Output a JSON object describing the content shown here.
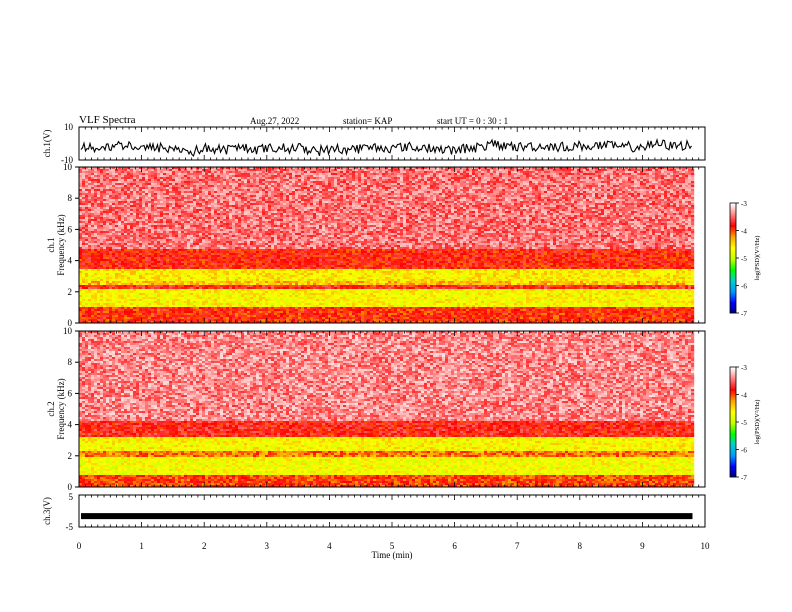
{
  "header": {
    "title": "VLF Spectra",
    "date": "Aug.27, 2022",
    "station": "station= KAP",
    "start": "start  UT =   0 : 30 : 1"
  },
  "chart_data": [
    {
      "type": "line",
      "name": "ch1-waveform",
      "ylabel": "ch.1(V)",
      "ylim": [
        -10,
        10
      ],
      "yticks": [
        "10",
        "-10"
      ],
      "xlim": [
        0,
        10
      ],
      "note_level_center": 0
    },
    {
      "type": "heatmap",
      "name": "ch1-spectrogram",
      "ylabel": "ch.1\nFrequency  (kHz)",
      "ylim": [
        0,
        10
      ],
      "yticks": [
        0,
        2,
        4,
        6,
        8,
        10
      ],
      "xlim": [
        0,
        10
      ],
      "data_end_x": 9.8,
      "colorbar": {
        "min": -7,
        "max": -3,
        "ticks": [
          "-3",
          "-4",
          "-5",
          "-6",
          "-7"
        ],
        "label": "log(PSD)(V²/Hz)"
      },
      "bands": [
        {
          "from_khz": 0.0,
          "to_khz": 1.0,
          "level": -4.2
        },
        {
          "from_khz": 1.0,
          "to_khz": 2.2,
          "level": -5.4
        },
        {
          "from_khz": 2.2,
          "to_khz": 2.4,
          "level": -4.0
        },
        {
          "from_khz": 2.4,
          "to_khz": 2.7,
          "level": -5.0
        },
        {
          "from_khz": 2.7,
          "to_khz": 3.5,
          "level": -5.3
        },
        {
          "from_khz": 3.5,
          "to_khz": 4.8,
          "level": -4.1
        },
        {
          "from_khz": 4.8,
          "to_khz": 10.0,
          "level": -3.5
        }
      ]
    },
    {
      "type": "heatmap",
      "name": "ch2-spectrogram",
      "ylabel": "ch.2\nFrequency  (kHz)",
      "ylim": [
        0,
        10
      ],
      "yticks": [
        0,
        2,
        4,
        6,
        8,
        10
      ],
      "xlim": [
        0,
        10
      ],
      "data_end_x": 9.8,
      "colorbar": {
        "min": -7,
        "max": -3,
        "ticks": [
          "-3",
          "-4",
          "-5",
          "-6",
          "-7"
        ],
        "label": "log(PSD)(V²/Hz)"
      },
      "bands": [
        {
          "from_khz": 0.0,
          "to_khz": 0.8,
          "level": -4.3
        },
        {
          "from_khz": 0.8,
          "to_khz": 1.9,
          "level": -5.5
        },
        {
          "from_khz": 1.9,
          "to_khz": 2.3,
          "level": -4.6
        },
        {
          "from_khz": 2.3,
          "to_khz": 3.2,
          "level": -5.4
        },
        {
          "from_khz": 3.2,
          "to_khz": 4.2,
          "level": -4.0
        },
        {
          "from_khz": 4.2,
          "to_khz": 10.0,
          "level": -3.4
        }
      ]
    },
    {
      "type": "line",
      "name": "ch3-waveform",
      "ylabel": "ch.3(V)",
      "ylim": [
        -5,
        5
      ],
      "yticks": [
        "5",
        "-5"
      ],
      "xlim": [
        0,
        10
      ],
      "level": -1.6
    }
  ],
  "xaxis": {
    "label": "Time  (min)",
    "ticks": [
      "0",
      "1",
      "2",
      "3",
      "4",
      "5",
      "6",
      "7",
      "8",
      "9",
      "10"
    ],
    "range": [
      0,
      10
    ]
  },
  "colors": {
    "colormap": [
      "#000064",
      "#0000ff",
      "#0096ff",
      "#00d2c8",
      "#00ff00",
      "#c8ff00",
      "#ffff00",
      "#ffa000",
      "#ff0000",
      "#ff8080",
      "#ffffff"
    ]
  }
}
